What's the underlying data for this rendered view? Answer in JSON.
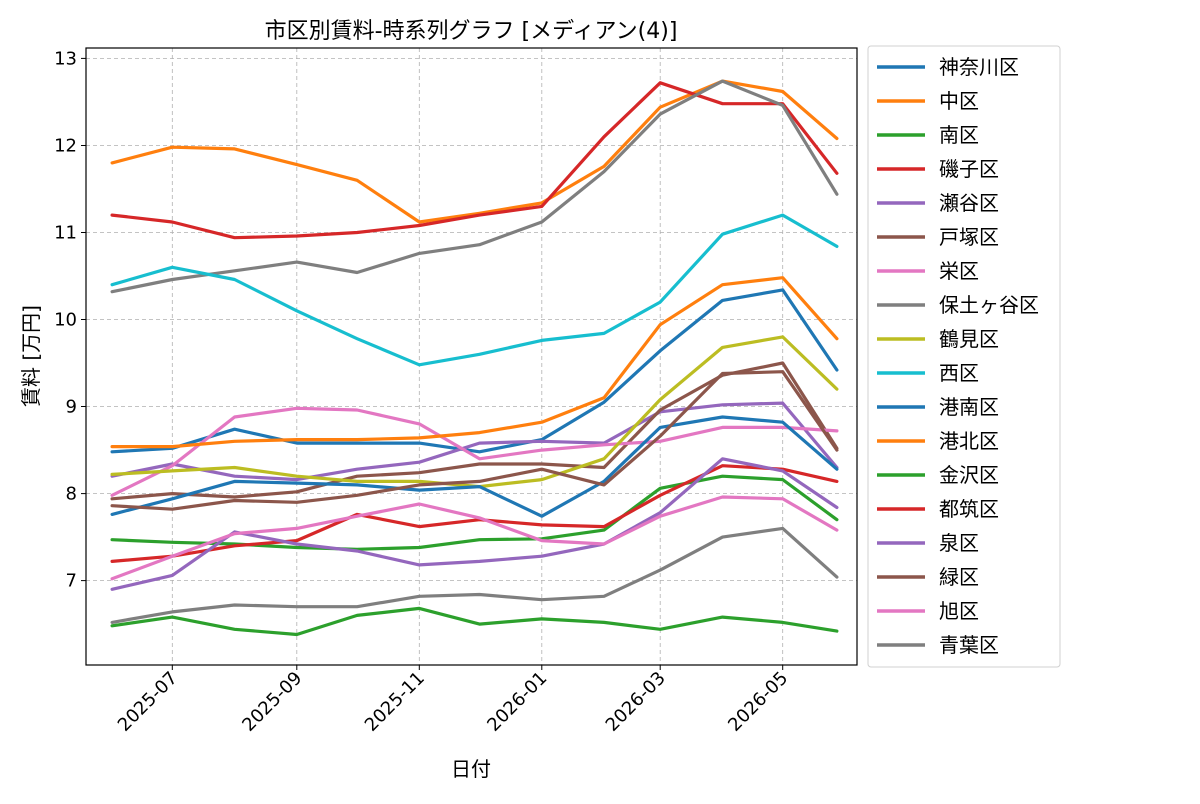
{
  "chart_data": {
    "type": "line",
    "title": "市区別賃料-時系列グラフ [メディアン(4)]",
    "xlabel": "日付",
    "ylabel": "賃料 [万円]",
    "xlim": [
      "2025-05-19",
      "2026-06-07"
    ],
    "ylim": [
      6.03,
      13.12
    ],
    "x_ticks": [
      {
        "date": "2025-07-01",
        "label": "2025-07"
      },
      {
        "date": "2025-09-01",
        "label": "2025-09"
      },
      {
        "date": "2025-11-01",
        "label": "2025-11"
      },
      {
        "date": "2026-01-01",
        "label": "2026-01"
      },
      {
        "date": "2026-03-01",
        "label": "2026-03"
      },
      {
        "date": "2026-05-01",
        "label": "2026-05"
      }
    ],
    "y_ticks": [
      7,
      8,
      9,
      10,
      11,
      12,
      13
    ],
    "grid": true,
    "legend_position": "outside-right",
    "dates": [
      "2025-06-01",
      "2025-07-01",
      "2025-08-01",
      "2025-09-01",
      "2025-10-01",
      "2025-11-01",
      "2025-12-01",
      "2026-01-01",
      "2026-02-01",
      "2026-03-01",
      "2026-04-01",
      "2026-05-01",
      "2026-05-28"
    ],
    "series": [
      {
        "name": "神奈川区",
        "color": "#1f77b4",
        "values": [
          8.48,
          8.52,
          8.74,
          8.58,
          8.58,
          8.58,
          8.48,
          8.62,
          9.05,
          9.64,
          10.22,
          10.34,
          9.42
        ]
      },
      {
        "name": "中区",
        "color": "#ff7f0e",
        "values": [
          11.8,
          11.98,
          11.96,
          11.78,
          11.6,
          11.12,
          11.22,
          11.34,
          11.76,
          12.44,
          12.74,
          12.62,
          12.08
        ]
      },
      {
        "name": "南区",
        "color": "#2ca02c",
        "values": [
          7.47,
          7.44,
          7.42,
          7.38,
          7.36,
          7.38,
          7.47,
          7.48,
          7.58,
          8.06,
          8.2,
          8.16,
          7.7
        ]
      },
      {
        "name": "磯子区",
        "color": "#d62728",
        "values": [
          11.2,
          11.12,
          10.94,
          10.96,
          11.0,
          11.08,
          11.2,
          11.3,
          12.1,
          12.72,
          12.48,
          12.48,
          11.68
        ]
      },
      {
        "name": "瀬谷区",
        "color": "#9467bd",
        "values": [
          8.2,
          8.34,
          8.2,
          8.16,
          8.28,
          8.36,
          8.58,
          8.6,
          8.58,
          8.94,
          9.02,
          9.04,
          8.3
        ]
      },
      {
        "name": "戸塚区",
        "color": "#8c564b",
        "values": [
          7.94,
          8.0,
          7.96,
          8.02,
          8.2,
          8.24,
          8.34,
          8.34,
          8.3,
          8.96,
          9.36,
          9.5,
          8.52
        ]
      },
      {
        "name": "栄区",
        "color": "#e377c2",
        "values": [
          7.98,
          8.32,
          8.88,
          8.98,
          8.96,
          8.8,
          8.4,
          8.5,
          8.56,
          8.6,
          8.76,
          8.76,
          8.72
        ]
      },
      {
        "name": "保土ヶ谷区",
        "color": "#7f7f7f",
        "values": [
          10.32,
          10.46,
          10.56,
          10.66,
          10.54,
          10.76,
          10.86,
          11.12,
          11.7,
          12.36,
          12.74,
          12.46,
          11.44
        ]
      },
      {
        "name": "鶴見区",
        "color": "#bcbd22",
        "values": [
          8.22,
          8.26,
          8.3,
          8.2,
          8.14,
          8.14,
          8.08,
          8.16,
          8.4,
          9.08,
          9.68,
          9.8,
          9.2
        ]
      },
      {
        "name": "西区",
        "color": "#17becf",
        "values": [
          10.4,
          10.6,
          10.46,
          10.1,
          9.78,
          9.48,
          9.6,
          9.76,
          9.84,
          10.2,
          10.98,
          11.2,
          10.84
        ]
      },
      {
        "name": "港南区",
        "color": "#1f77b4",
        "values": [
          7.76,
          7.94,
          8.14,
          8.12,
          8.1,
          8.04,
          8.08,
          7.74,
          8.14,
          8.76,
          8.88,
          8.82,
          8.28
        ]
      },
      {
        "name": "港北区",
        "color": "#ff7f0e",
        "values": [
          8.54,
          8.54,
          8.6,
          8.62,
          8.62,
          8.64,
          8.7,
          8.82,
          9.1,
          9.94,
          10.4,
          10.48,
          9.78
        ]
      },
      {
        "name": "金沢区",
        "color": "#2ca02c",
        "values": [
          6.48,
          6.58,
          6.44,
          6.38,
          6.6,
          6.68,
          6.5,
          6.56,
          6.52,
          6.44,
          6.58,
          6.52,
          6.42
        ]
      },
      {
        "name": "都筑区",
        "color": "#d62728",
        "values": [
          7.22,
          7.28,
          7.4,
          7.46,
          7.76,
          7.62,
          7.7,
          7.64,
          7.62,
          7.98,
          8.32,
          8.28,
          8.14
        ]
      },
      {
        "name": "泉区",
        "color": "#9467bd",
        "values": [
          6.9,
          7.06,
          7.56,
          7.42,
          7.34,
          7.18,
          7.22,
          7.28,
          7.42,
          7.78,
          8.4,
          8.26,
          7.84
        ]
      },
      {
        "name": "緑区",
        "color": "#8c564b",
        "values": [
          7.86,
          7.82,
          7.92,
          7.9,
          7.98,
          8.1,
          8.14,
          8.28,
          8.1,
          8.66,
          9.38,
          9.4,
          8.5
        ]
      },
      {
        "name": "旭区",
        "color": "#e377c2",
        "values": [
          7.02,
          7.28,
          7.54,
          7.6,
          7.74,
          7.88,
          7.72,
          7.46,
          7.42,
          7.74,
          7.96,
          7.94,
          7.58
        ]
      },
      {
        "name": "青葉区",
        "color": "#7f7f7f",
        "values": [
          6.52,
          6.64,
          6.72,
          6.7,
          6.7,
          6.82,
          6.84,
          6.78,
          6.82,
          7.12,
          7.5,
          7.6,
          7.04
        ]
      }
    ]
  }
}
